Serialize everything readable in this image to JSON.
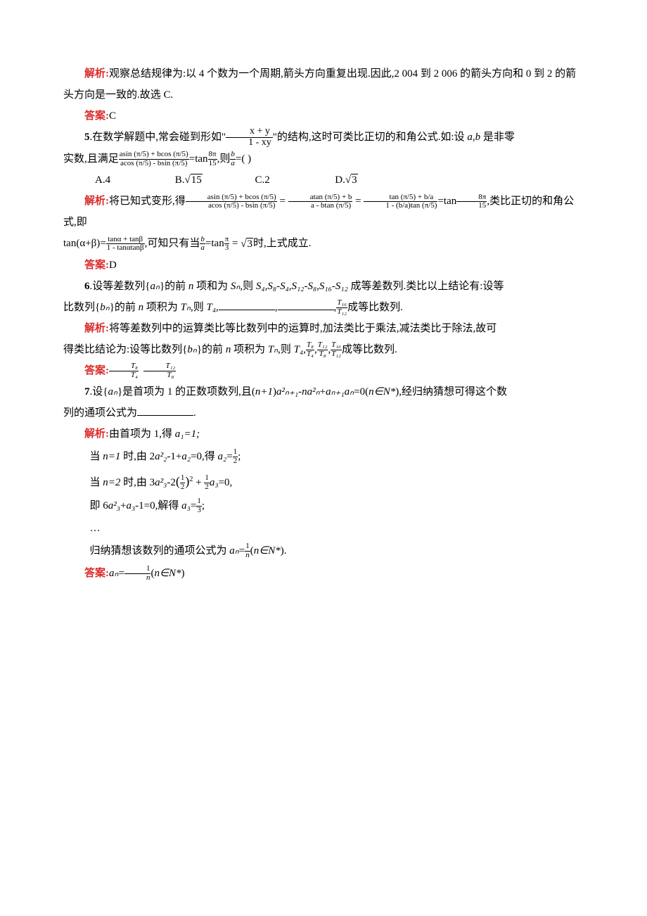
{
  "labels": {
    "jiexi": "解析:",
    "daan": "答案:"
  },
  "q4": {
    "jiexi_text": "观察总结规律为:以 4 个数为一个周期,箭头方向重复出现.因此,2 004 到 2 006 的箭头方向和 0 到 2 的箭头方向是一致的.故选 C.",
    "answer": "C"
  },
  "q5": {
    "num": "5",
    "stem1_a": ".在数学解题中,常会碰到形如\"",
    "stem1_b": "\"的结构,这时可类比正切的和角公式.如:设 ",
    "stem1_vars": "a,b",
    "stem1_c": " 是非零",
    "struct_num": "x + y",
    "struct_den": "1 - xy",
    "stem2_a": "实数,且满足",
    "eq_left_num": "asin (π/5) + bcos (π/5)",
    "eq_left_den": "acos (π/5) - bsin (π/5)",
    "eq_mid": "=tan",
    "eq_tan_num": "8π",
    "eq_tan_den": "15",
    "stem2_b": ",则",
    "ratio_num": "b",
    "ratio_den": "a",
    "stem2_c": "=(        )",
    "choiceA": "A.4",
    "choiceB_pre": "B.",
    "choiceB_val": "15",
    "choiceC": "C.2",
    "choiceD_pre": "D.",
    "choiceD_val": "3",
    "jiexi_a": "将已知式变形,得",
    "r1_num": "asin (π/5) + bcos (π/5)",
    "r1_den": "acos (π/5) - bsin (π/5)",
    "eqs": " = ",
    "r2_num": "atan (π/5) + b",
    "r2_den": "a - btan (π/5)",
    "r3_num": "tan (π/5) + b/a",
    "r3_den": "1 - (b/a)tan (π/5)",
    "jiexi_b": ",类比正切的和角公式,即",
    "line3_a": "tan(α+β)=",
    "sum_num": "tanα + tanβ",
    "sum_den": "1 - tanαtanβ",
    "line3_b": ",可知只有当",
    "line3_c": "=tan",
    "tan3_num": "π",
    "tan3_den": "3",
    "line3_d": " = ",
    "sqrt3": "3",
    "line3_e": "时,上式成立.",
    "answer": "D"
  },
  "q6": {
    "num": "6",
    "stem1": ".设等差数列{",
    "an": "aₙ",
    "stem1b": "}的前 ",
    "n": "n",
    "stem1c": " 项和为 ",
    "Sn": "Sₙ",
    "stem1d": ",则 ",
    "seq": "S₄,S₈-S₄,S₁₂-S₈,S₁₆-S₁₂",
    "stem1e": " 成等差数列.类比以上结论有:设等",
    "stem2a": "比数列{",
    "bn": "bₙ",
    "stem2b": "}的前 ",
    "stem2c": " 项积为 ",
    "Tn": "Tₙ",
    "stem2d": ",则 ",
    "T4": "T₄,",
    "frac_last_num": "T₁₆",
    "frac_last_den": "T₁₂",
    "stem2e": "成等比数列.",
    "jiexi_a": "将等差数列中的运算类比等比数列中的运算时,加法类比于乘法,减法类比于除法,故可",
    "jiexi_b": "得类比结论为:设等比数列{",
    "jiexi_c": "}的前 ",
    "jiexi_d": " 项积为 ",
    "jiexi_e": ",则 ",
    "jiexi_T4": "T₄,",
    "f1_num": "T₈",
    "f1_den": "T₄",
    "f2_num": "T₁₂",
    "f2_den": "T₈",
    "f3_num": "T₁₆",
    "f3_den": "T₁₂",
    "jiexi_f": "成等比数列.",
    "ans_f1_num": "T₈",
    "ans_f1_den": "T₄",
    "ans_f2_num": "T₁₂",
    "ans_f2_den": "T₈"
  },
  "q7": {
    "num": "7",
    "stem_a": ".设{",
    "an": "aₙ",
    "stem_b": "}是首项为 1 的正数项数列,且(",
    "np1": "n+1",
    "stem_b2": ")",
    "term1": "a²ₙ₊₁",
    "stem_c": "-",
    "term_na": "na²ₙ",
    "stem_d": "+",
    "term2": "aₙ₊₁aₙ",
    "stem_e": "=0(",
    "nN": "n∈N*",
    "stem_f": "),经归纳猜想可得这个数",
    "stem_g": "列的通项公式为",
    "stem_h": ".",
    "jiexi_a": "由首项为 1,得 ",
    "a1": "a₁=1;",
    "step1_a": "当 ",
    "step1_n": "n=1",
    "step1_b": " 时,由 2",
    "step1_c": "-1+",
    "a2": "a₂",
    "step1_d": "=0,得 ",
    "step1_e": "=",
    "half_num": "1",
    "half_den": "2",
    "step2_a": "当 ",
    "step2_n": "n=2",
    "step2_b": " 时,由 3",
    "a3sq": "a²₃",
    "step2_c": "-2",
    "step2_par_l": "(",
    "step2_par_r": ")",
    "step2_pow": "2",
    "step2_d": " + ",
    "step2_e": "=0,",
    "a3": "a₃",
    "step3_a": "即 6",
    "step3_b": "+",
    "step3_c": "-1=0,解得 ",
    "step3_d": "=",
    "third_num": "1",
    "third_den": "3",
    "dots": "…",
    "concl_a": "归纳猜想该数列的通项公式为 ",
    "concl_an": "aₙ",
    "concl_b": "=",
    "gen_num": "1",
    "gen_den": "n",
    "concl_c": "(",
    "concl_d": ").",
    "ans_a": "aₙ",
    "ans_b": "=",
    "ans_c": "(",
    "ans_d": ")"
  }
}
